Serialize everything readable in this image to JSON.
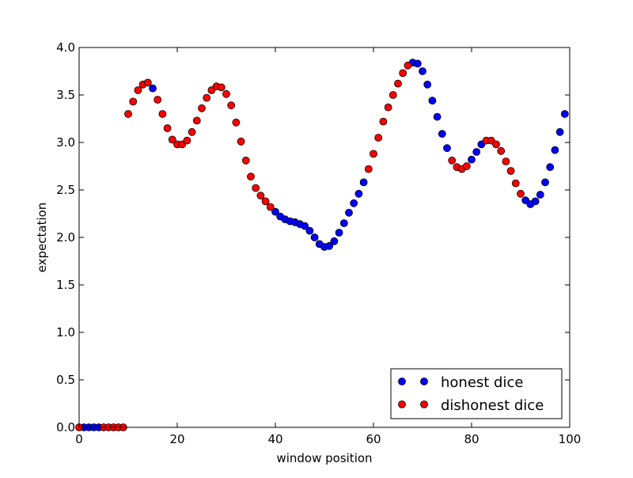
{
  "chart_data": {
    "type": "scatter",
    "xlabel": "window position",
    "ylabel": "expectation",
    "xlim": [
      0,
      100
    ],
    "ylim": [
      0,
      4.0
    ],
    "xticks": [
      "0",
      "20",
      "40",
      "60",
      "80",
      "100"
    ],
    "yticks": [
      "0.0",
      "0.5",
      "1.0",
      "1.5",
      "2.0",
      "2.5",
      "3.0",
      "3.5",
      "4.0"
    ],
    "grid": false,
    "legend_position": "lower-right",
    "series": [
      {
        "name": "honest dice",
        "color": "#0000ff",
        "x": [
          1,
          2,
          3,
          4,
          15,
          40,
          41,
          42,
          43,
          44,
          45,
          46,
          47,
          48,
          49,
          50,
          51,
          52,
          53,
          54,
          55,
          56,
          57,
          58,
          68,
          69,
          70,
          71,
          72,
          73,
          74,
          75,
          80,
          81,
          82,
          91,
          92,
          93,
          94,
          95,
          96,
          97,
          98,
          99
        ],
        "y": [
          0,
          0,
          0,
          0,
          3.57,
          2.27,
          2.22,
          2.19,
          2.17,
          2.16,
          2.14,
          2.12,
          2.07,
          2.0,
          1.93,
          1.9,
          1.91,
          1.96,
          2.05,
          2.15,
          2.26,
          2.36,
          2.46,
          2.58,
          3.84,
          3.83,
          3.75,
          3.61,
          3.44,
          3.27,
          3.09,
          2.94,
          2.82,
          2.9,
          2.98,
          2.39,
          2.35,
          2.38,
          2.45,
          2.58,
          2.74,
          2.92,
          3.11,
          3.3
        ]
      },
      {
        "name": "dishonest dice",
        "color": "#ff0000",
        "x": [
          0,
          5,
          6,
          7,
          8,
          9,
          10,
          11,
          12,
          13,
          14,
          16,
          17,
          18,
          19,
          20,
          21,
          22,
          23,
          24,
          25,
          26,
          27,
          28,
          29,
          30,
          31,
          32,
          33,
          34,
          35,
          36,
          37,
          38,
          39,
          59,
          60,
          61,
          62,
          63,
          64,
          65,
          66,
          67,
          76,
          77,
          78,
          79,
          83,
          84,
          85,
          86,
          87,
          88,
          89,
          90
        ],
        "y": [
          0,
          0,
          0,
          0,
          0,
          0,
          3.3,
          3.43,
          3.55,
          3.61,
          3.63,
          3.45,
          3.3,
          3.15,
          3.03,
          2.98,
          2.98,
          3.02,
          3.11,
          3.23,
          3.36,
          3.47,
          3.55,
          3.59,
          3.58,
          3.51,
          3.39,
          3.21,
          3.01,
          2.81,
          2.64,
          2.52,
          2.44,
          2.38,
          2.32,
          2.72,
          2.88,
          3.05,
          3.22,
          3.37,
          3.5,
          3.62,
          3.73,
          3.81,
          2.81,
          2.74,
          2.72,
          2.75,
          3.02,
          3.02,
          2.98,
          2.91,
          2.8,
          2.7,
          2.57,
          2.46
        ]
      }
    ]
  }
}
